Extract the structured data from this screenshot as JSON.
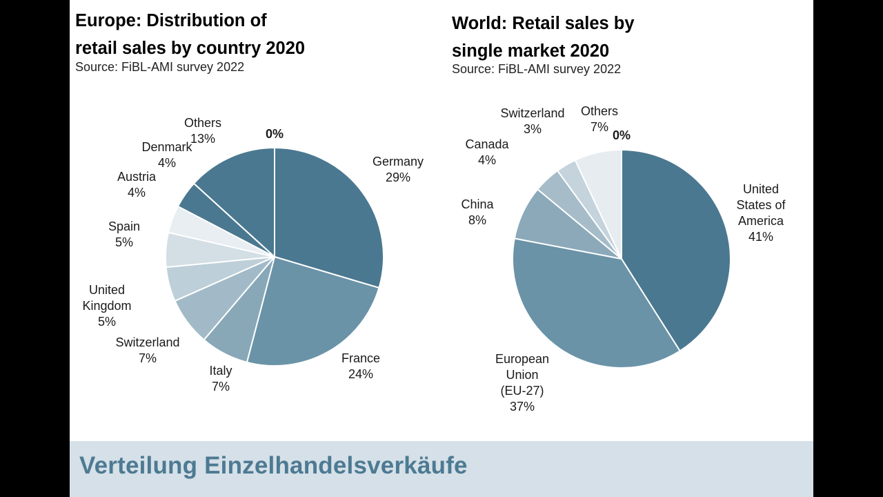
{
  "footer": {
    "text": "Verteilung Einzelhandelsverkäufe"
  },
  "chart_data": [
    {
      "type": "pie",
      "title_lines": [
        "Europe: Distribution of",
        "retail sales by country 2020"
      ],
      "subtitle": "Source: FiBL-AMI survey 2022",
      "unit": "%",
      "top_label": "0%",
      "slices": [
        {
          "name_lines": [
            "Germany"
          ],
          "value": 29,
          "label": "29%",
          "color": "#4a7890"
        },
        {
          "name_lines": [
            "France"
          ],
          "value": 24,
          "label": "24%",
          "color": "#6a93a7"
        },
        {
          "name_lines": [
            "Italy"
          ],
          "value": 7,
          "label": "7%",
          "color": "#88a8b8"
        },
        {
          "name_lines": [
            "Switzerland"
          ],
          "value": 7,
          "label": "7%",
          "color": "#a2bac7"
        },
        {
          "name_lines": [
            "United",
            "Kingdom"
          ],
          "value": 5,
          "label": "5%",
          "color": "#bdcfd8"
        },
        {
          "name_lines": [
            "Spain"
          ],
          "value": 5,
          "label": "5%",
          "color": "#d3dfe5"
        },
        {
          "name_lines": [
            "Austria"
          ],
          "value": 4,
          "label": "4%",
          "color": "#e8eef1"
        },
        {
          "name_lines": [
            "Denmark"
          ],
          "value": 4,
          "label": "4%",
          "color": "#4a7890"
        },
        {
          "name_lines": [
            "Others"
          ],
          "value": 13,
          "label": "13%",
          "color": "#4a7890"
        }
      ]
    },
    {
      "type": "pie",
      "title_lines": [
        "World: Retail sales by",
        "single market 2020"
      ],
      "subtitle": "Source: FiBL-AMI survey 2022",
      "unit": "%",
      "top_label": "0%",
      "slices": [
        {
          "name_lines": [
            "United",
            "States of",
            "America"
          ],
          "value": 41,
          "label": "41%",
          "color": "#4a7890"
        },
        {
          "name_lines": [
            "European",
            "Union",
            "(EU-27)"
          ],
          "value": 37,
          "label": "37%",
          "color": "#6a93a7"
        },
        {
          "name_lines": [
            "China"
          ],
          "value": 8,
          "label": "8%",
          "color": "#8ba9b9"
        },
        {
          "name_lines": [
            "Canada"
          ],
          "value": 4,
          "label": "4%",
          "color": "#a6bdc9"
        },
        {
          "name_lines": [
            "Switzerland"
          ],
          "value": 3,
          "label": "3%",
          "color": "#c4d3dc"
        },
        {
          "name_lines": [
            "Others"
          ],
          "value": 7,
          "label": "7%",
          "color": "#e6ecef"
        }
      ]
    }
  ]
}
